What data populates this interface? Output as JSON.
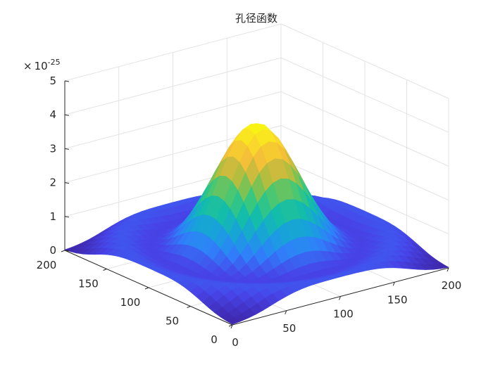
{
  "chart_data": {
    "type": "surface",
    "title": "孔径函数",
    "xlabel": "",
    "ylabel": "",
    "zlabel": "",
    "xlim": [
      0,
      200
    ],
    "ylim": [
      0,
      200
    ],
    "zlim": [
      0,
      5
    ],
    "z_exponent_label": "× 10-25",
    "z_exponent": -25,
    "x_ticks": [
      "0",
      "50",
      "100",
      "150",
      "200"
    ],
    "y_ticks": [
      "0",
      "50",
      "100",
      "150",
      "200"
    ],
    "z_ticks": [
      "0",
      "1",
      "2",
      "3",
      "4",
      "5"
    ],
    "grid": true,
    "colormap": "parula",
    "peak": {
      "x": 100,
      "y": 100,
      "z": 4.0
    },
    "gaussian_sigma": 32,
    "colors": {
      "colormap_stops": [
        "#3e26a8",
        "#4744e8",
        "#2f80fa",
        "#17a3d9",
        "#14bda9",
        "#3ec878",
        "#a4be3f",
        "#f1b93b",
        "#f9d92a",
        "#f8fa0d"
      ]
    }
  }
}
